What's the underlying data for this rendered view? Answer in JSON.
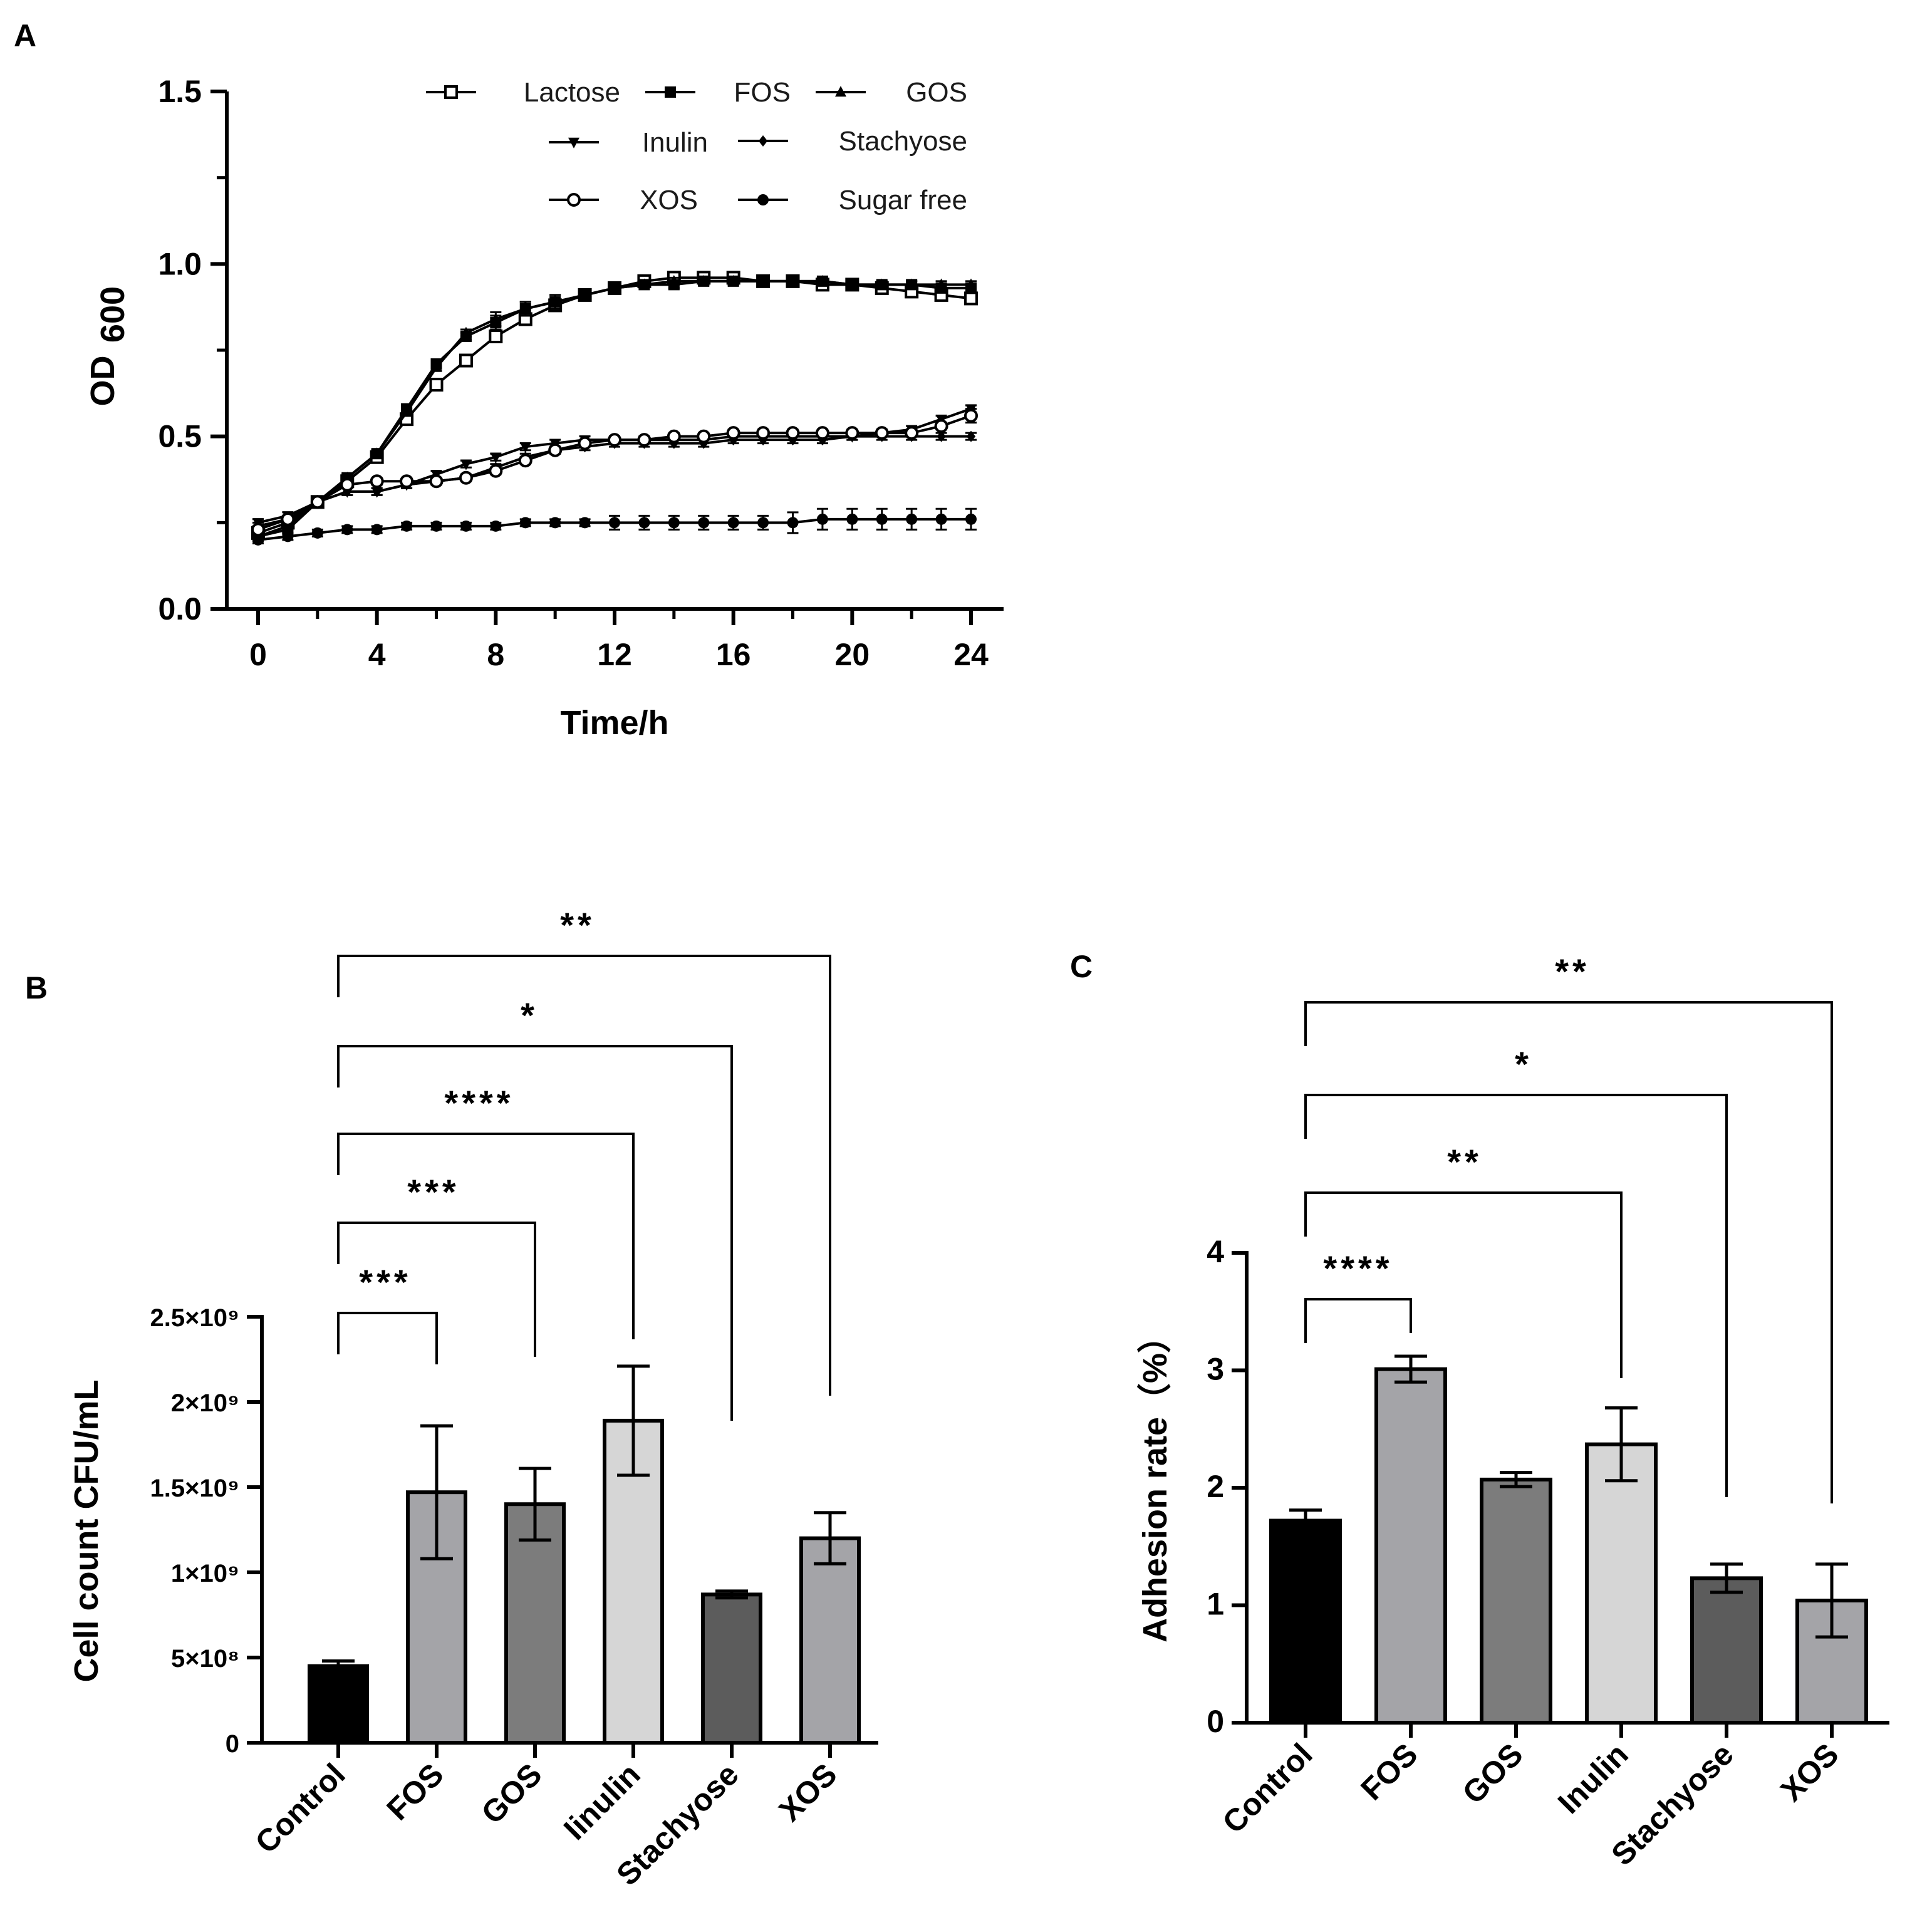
{
  "panels": {
    "a": "A",
    "b": "B",
    "c": "C"
  },
  "chart_data": [
    {
      "id": "A",
      "type": "line",
      "title": "",
      "xlabel": "Time/h",
      "ylabel_main": "OD",
      "ylabel_sub": "600",
      "xlim": [
        0,
        24
      ],
      "ylim": [
        0,
        1.5
      ],
      "xticks": [
        0,
        4,
        8,
        12,
        16,
        20,
        24
      ],
      "yticks": [
        0.0,
        0.5,
        1.0,
        1.5
      ],
      "ytick_labels": [
        "0.0",
        "0.5",
        "1.0",
        "1.5"
      ],
      "legend_position": "top-right",
      "x": [
        0,
        1,
        2,
        3,
        4,
        5,
        6,
        7,
        8,
        9,
        10,
        11,
        12,
        13,
        14,
        15,
        16,
        17,
        18,
        19,
        20,
        21,
        22,
        23,
        24
      ],
      "series": [
        {
          "name": "Lactose",
          "marker": "square-open",
          "values": [
            0.22,
            0.25,
            0.31,
            0.37,
            0.44,
            0.55,
            0.65,
            0.72,
            0.79,
            0.84,
            0.88,
            0.91,
            0.93,
            0.95,
            0.96,
            0.96,
            0.96,
            0.95,
            0.95,
            0.94,
            0.94,
            0.93,
            0.92,
            0.91,
            0.9
          ],
          "errors": [
            0.01,
            0.01,
            0.01,
            0.01,
            0.01,
            0.01,
            0.01,
            0.01,
            0.01,
            0.01,
            0.01,
            0.01,
            0.01,
            0.01,
            0.01,
            0.01,
            0.01,
            0.01,
            0.01,
            0.01,
            0.01,
            0.01,
            0.01,
            0.01,
            0.01
          ]
        },
        {
          "name": "FOS",
          "marker": "square-filled",
          "values": [
            0.21,
            0.23,
            0.31,
            0.38,
            0.45,
            0.58,
            0.71,
            0.79,
            0.83,
            0.87,
            0.89,
            0.91,
            0.93,
            0.94,
            0.94,
            0.95,
            0.95,
            0.95,
            0.95,
            0.95,
            0.94,
            0.94,
            0.94,
            0.93,
            0.93
          ],
          "errors": [
            0.01,
            0.01,
            0.01,
            0.01,
            0.01,
            0.01,
            0.01,
            0.01,
            0.02,
            0.02,
            0.02,
            0.01,
            0.01,
            0.01,
            0.01,
            0.01,
            0.01,
            0.01,
            0.01,
            0.01,
            0.01,
            0.01,
            0.01,
            0.01,
            0.01
          ]
        },
        {
          "name": "GOS",
          "marker": "triangle-up",
          "values": [
            0.24,
            0.26,
            0.31,
            0.38,
            0.45,
            0.57,
            0.7,
            0.8,
            0.84,
            0.87,
            0.89,
            0.91,
            0.93,
            0.94,
            0.95,
            0.95,
            0.95,
            0.95,
            0.95,
            0.95,
            0.94,
            0.94,
            0.94,
            0.94,
            0.94
          ],
          "errors": [
            0.01,
            0.01,
            0.01,
            0.01,
            0.01,
            0.01,
            0.01,
            0.01,
            0.02,
            0.02,
            0.02,
            0.01,
            0.01,
            0.01,
            0.01,
            0.01,
            0.01,
            0.01,
            0.01,
            0.01,
            0.01,
            0.01,
            0.01,
            0.01,
            0.01
          ]
        },
        {
          "name": "Inulin",
          "marker": "triangle-down",
          "values": [
            0.25,
            0.27,
            0.31,
            0.34,
            0.34,
            0.36,
            0.39,
            0.42,
            0.44,
            0.47,
            0.48,
            0.49,
            0.49,
            0.49,
            0.49,
            0.49,
            0.5,
            0.5,
            0.5,
            0.5,
            0.5,
            0.51,
            0.52,
            0.55,
            0.58
          ],
          "errors": [
            0.01,
            0.01,
            0.01,
            0.01,
            0.01,
            0.01,
            0.01,
            0.01,
            0.01,
            0.01,
            0.01,
            0.01,
            0.01,
            0.01,
            0.01,
            0.01,
            0.01,
            0.01,
            0.01,
            0.01,
            0.01,
            0.01,
            0.01,
            0.01,
            0.01
          ]
        },
        {
          "name": "Stachyose",
          "marker": "diamond",
          "values": [
            0.21,
            0.24,
            0.31,
            0.34,
            0.34,
            0.36,
            0.37,
            0.38,
            0.41,
            0.44,
            0.46,
            0.47,
            0.48,
            0.48,
            0.48,
            0.48,
            0.49,
            0.49,
            0.49,
            0.49,
            0.5,
            0.5,
            0.5,
            0.5,
            0.5
          ],
          "errors": [
            0.01,
            0.01,
            0.01,
            0.01,
            0.01,
            0.01,
            0.01,
            0.01,
            0.01,
            0.01,
            0.01,
            0.01,
            0.01,
            0.01,
            0.01,
            0.01,
            0.01,
            0.01,
            0.01,
            0.01,
            0.01,
            0.01,
            0.01,
            0.01,
            0.01
          ]
        },
        {
          "name": "XOS",
          "marker": "circle-open",
          "values": [
            0.23,
            0.26,
            0.31,
            0.36,
            0.37,
            0.37,
            0.37,
            0.38,
            0.4,
            0.43,
            0.46,
            0.48,
            0.49,
            0.49,
            0.5,
            0.5,
            0.51,
            0.51,
            0.51,
            0.51,
            0.51,
            0.51,
            0.51,
            0.53,
            0.56
          ],
          "errors": [
            0.01,
            0.01,
            0.01,
            0.01,
            0.01,
            0.01,
            0.01,
            0.01,
            0.01,
            0.01,
            0.01,
            0.01,
            0.01,
            0.01,
            0.01,
            0.01,
            0.01,
            0.01,
            0.01,
            0.01,
            0.01,
            0.01,
            0.01,
            0.01,
            0.02
          ]
        },
        {
          "name": "Sugar free",
          "marker": "circle-filled",
          "values": [
            0.2,
            0.21,
            0.22,
            0.23,
            0.23,
            0.24,
            0.24,
            0.24,
            0.24,
            0.25,
            0.25,
            0.25,
            0.25,
            0.25,
            0.25,
            0.25,
            0.25,
            0.25,
            0.25,
            0.26,
            0.26,
            0.26,
            0.26,
            0.26,
            0.26
          ],
          "errors": [
            0.01,
            0.01,
            0.01,
            0.01,
            0.01,
            0.01,
            0.01,
            0.01,
            0.01,
            0.01,
            0.01,
            0.01,
            0.02,
            0.02,
            0.02,
            0.02,
            0.02,
            0.02,
            0.03,
            0.03,
            0.03,
            0.03,
            0.03,
            0.03,
            0.03
          ]
        }
      ]
    },
    {
      "id": "B",
      "type": "bar",
      "title": "",
      "xlabel": "",
      "ylabel": "Cell count CFU/mL",
      "ylim": [
        0,
        2500000000
      ],
      "yticks": [
        0,
        500000000,
        1000000000,
        1500000000,
        2000000000,
        2500000000
      ],
      "ytick_labels": [
        "0",
        "5×10⁸",
        "1×10⁹",
        "1.5×10⁹",
        "2×10⁹",
        "2.5×10⁹"
      ],
      "categories": [
        "Control",
        "FOS",
        "GOS",
        "Iinulin",
        "Stachyose",
        "XOS"
      ],
      "values": [
        450000000,
        1470000000,
        1400000000,
        1890000000,
        870000000,
        1200000000
      ],
      "errors": [
        30000000,
        390000000,
        210000000,
        320000000,
        20000000,
        150000000
      ],
      "colors": [
        "#000000",
        "#a4a4a8",
        "#7c7c7c",
        "#d6d6d6",
        "#5c5c5c",
        "#a4a4a8"
      ],
      "significance": [
        {
          "from": "Control",
          "to": "FOS",
          "label": "***"
        },
        {
          "from": "Control",
          "to": "GOS",
          "label": "***"
        },
        {
          "from": "Control",
          "to": "Iinulin",
          "label": "****"
        },
        {
          "from": "Control",
          "to": "Stachyose",
          "label": "*"
        },
        {
          "from": "Control",
          "to": "XOS",
          "label": "**"
        }
      ]
    },
    {
      "id": "C",
      "type": "bar",
      "title": "",
      "xlabel": "",
      "ylabel": "Adhesion rate（%）",
      "ylim": [
        0,
        4
      ],
      "yticks": [
        0,
        1,
        2,
        3,
        4
      ],
      "ytick_labels": [
        "0",
        "1",
        "2",
        "3",
        "4"
      ],
      "categories": [
        "Control",
        "FOS",
        "GOS",
        "Inulin",
        "Stachyose",
        "XOS"
      ],
      "values": [
        1.72,
        3.01,
        2.07,
        2.37,
        1.23,
        1.04
      ],
      "errors": [
        0.09,
        0.11,
        0.06,
        0.31,
        0.12,
        0.31
      ],
      "colors": [
        "#000000",
        "#a4a4a8",
        "#7c7c7c",
        "#d6d6d6",
        "#5c5c5c",
        "#a4a4a8"
      ],
      "significance": [
        {
          "from": "Control",
          "to": "FOS",
          "label": "****"
        },
        {
          "from": "Control",
          "to": "Inulin",
          "label": "**"
        },
        {
          "from": "Control",
          "to": "Stachyose",
          "label": "*"
        },
        {
          "from": "Control",
          "to": "XOS",
          "label": "**"
        }
      ]
    }
  ]
}
